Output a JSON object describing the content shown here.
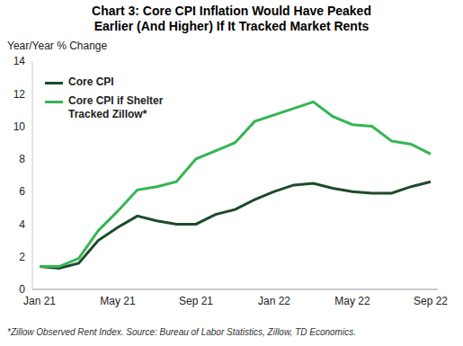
{
  "chart_data": {
    "type": "line",
    "title": "Chart 3: Core CPI Inflation Would Have Peaked\nEarlier (And Higher) If It Tracked Market Rents",
    "y_label": "Year/Year % Change",
    "footnote": "*Zillow Observed Rent Index. Source: Bureau of Labor Statistics, Zillow, TD Economics.",
    "categories": [
      "Jan 21",
      null,
      null,
      null,
      "May 21",
      null,
      null,
      null,
      "Sep 21",
      null,
      null,
      null,
      "Jan 22",
      null,
      null,
      null,
      "May 22",
      null,
      null,
      null,
      "Sep 22"
    ],
    "series": [
      {
        "name": "Core CPI",
        "color": "#1d4a2c",
        "values": [
          1.4,
          1.3,
          1.6,
          3.0,
          3.8,
          4.5,
          4.2,
          4.0,
          4.0,
          4.6,
          4.9,
          5.5,
          6.0,
          6.4,
          6.5,
          6.2,
          6.0,
          5.9,
          5.9,
          6.3,
          6.6
        ]
      },
      {
        "name": "Core CPI if Shelter\nTracked Zillow*",
        "color": "#35b552",
        "values": [
          1.4,
          1.4,
          1.9,
          3.6,
          4.8,
          6.1,
          6.3,
          6.6,
          8.0,
          8.5,
          9.0,
          10.3,
          10.7,
          11.1,
          11.5,
          10.6,
          10.1,
          10.0,
          9.1,
          8.9,
          8.3
        ]
      }
    ],
    "ylim": [
      0,
      14
    ],
    "yticks": [
      0,
      2,
      4,
      6,
      8,
      10,
      12,
      14
    ],
    "grid": false,
    "legend": "top-left"
  }
}
